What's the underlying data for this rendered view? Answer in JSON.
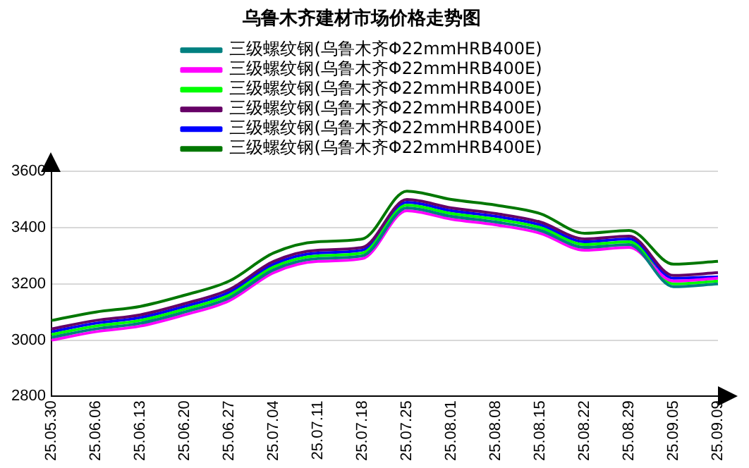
{
  "chart_data": {
    "type": "line",
    "title": "乌鲁木齐建材市场价格走势图",
    "categories": [
      "25.05.30",
      "25.06.06",
      "25.06.13",
      "25.06.20",
      "25.06.27",
      "25.07.04",
      "25.07.11",
      "25.07.18",
      "25.07.25",
      "25.08.01",
      "25.08.08",
      "25.08.15",
      "25.08.22",
      "25.08.29",
      "25.09.05",
      "25.09.09"
    ],
    "series": [
      {
        "name": "三级螺纹钢(乌鲁木齐Φ22mmHRB400E)",
        "color": "#008080",
        "values": [
          3010,
          3040,
          3060,
          3100,
          3150,
          3250,
          3290,
          3300,
          3470,
          3440,
          3420,
          3390,
          3330,
          3340,
          3190,
          3200
        ]
      },
      {
        "name": "三级螺纹钢(乌鲁木齐Φ22mmHRB400E)",
        "color": "#ff00ff",
        "values": [
          3000,
          3030,
          3050,
          3090,
          3140,
          3240,
          3280,
          3290,
          3460,
          3430,
          3410,
          3380,
          3320,
          3330,
          3210,
          3220
        ]
      },
      {
        "name": "三级螺纹钢(乌鲁木齐Φ22mmHRB400E)",
        "color": "#00ff00",
        "values": [
          3020,
          3050,
          3070,
          3110,
          3160,
          3260,
          3300,
          3310,
          3480,
          3450,
          3430,
          3400,
          3340,
          3350,
          3200,
          3210
        ]
      },
      {
        "name": "三级螺纹钢(乌鲁木齐Φ22mmHRB400E)",
        "color": "#660066",
        "values": [
          3040,
          3070,
          3090,
          3130,
          3180,
          3280,
          3320,
          3330,
          3500,
          3470,
          3450,
          3420,
          3360,
          3370,
          3230,
          3240
        ]
      },
      {
        "name": "三级螺纹钢(乌鲁木齐Φ22mmHRB400E)",
        "color": "#0000ff",
        "values": [
          3030,
          3060,
          3080,
          3120,
          3170,
          3270,
          3310,
          3320,
          3490,
          3460,
          3440,
          3410,
          3350,
          3360,
          3220,
          3225
        ]
      },
      {
        "name": "三级螺纹钢(乌鲁木齐Φ22mmHRB400E)",
        "color": "#007700",
        "values": [
          3070,
          3100,
          3120,
          3160,
          3210,
          3310,
          3350,
          3360,
          3530,
          3500,
          3480,
          3450,
          3380,
          3390,
          3270,
          3280
        ]
      }
    ],
    "ylim": [
      2800,
      3600
    ],
    "yticks": [
      2800,
      3000,
      3200,
      3400,
      3600
    ],
    "grid": "y",
    "legend": "top",
    "marker": "none",
    "line_style": "solid"
  }
}
